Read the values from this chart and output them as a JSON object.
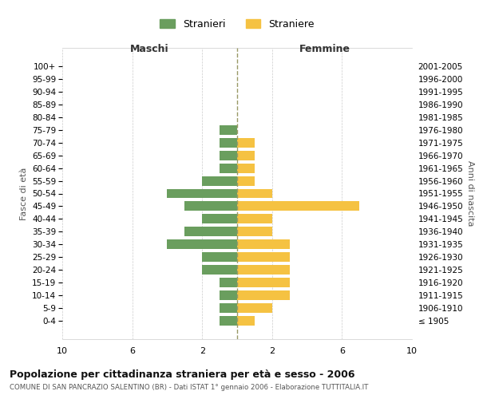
{
  "age_groups": [
    "100+",
    "95-99",
    "90-94",
    "85-89",
    "80-84",
    "75-79",
    "70-74",
    "65-69",
    "60-64",
    "55-59",
    "50-54",
    "45-49",
    "40-44",
    "35-39",
    "30-34",
    "25-29",
    "20-24",
    "15-19",
    "10-14",
    "5-9",
    "0-4"
  ],
  "birth_years": [
    "≤ 1905",
    "1906-1910",
    "1911-1915",
    "1916-1920",
    "1921-1925",
    "1926-1930",
    "1931-1935",
    "1936-1940",
    "1941-1945",
    "1946-1950",
    "1951-1955",
    "1956-1960",
    "1961-1965",
    "1966-1970",
    "1971-1975",
    "1976-1980",
    "1981-1985",
    "1986-1990",
    "1991-1995",
    "1996-2000",
    "2001-2005"
  ],
  "maschi": [
    0,
    0,
    0,
    0,
    0,
    1,
    1,
    1,
    1,
    2,
    4,
    3,
    2,
    3,
    4,
    2,
    2,
    1,
    1,
    1,
    1
  ],
  "femmine": [
    0,
    0,
    0,
    0,
    0,
    0,
    1,
    1,
    1,
    1,
    2,
    7,
    2,
    2,
    3,
    3,
    3,
    3,
    3,
    2,
    1
  ],
  "maschi_color": "#6a9e5e",
  "femmine_color": "#f5c242",
  "background_color": "#ffffff",
  "grid_color": "#cccccc",
  "dashed_line_color": "#999966",
  "title": "Popolazione per cittadinanza straniera per età e sesso - 2006",
  "subtitle": "COMUNE DI SAN PANCRAZIO SALENTINO (BR) - Dati ISTAT 1° gennaio 2006 - Elaborazione TUTTITALIA.IT",
  "xlabel_left": "Maschi",
  "xlabel_right": "Femmine",
  "ylabel_left": "Fasce di età",
  "ylabel_right": "Anni di nascita",
  "legend_maschi": "Stranieri",
  "legend_femmine": "Straniere"
}
